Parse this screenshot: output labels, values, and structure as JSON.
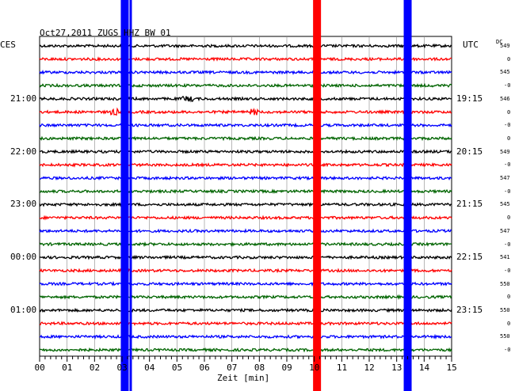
{
  "header": {
    "title": "Oct27,2011   ZUGS HHZ BW 01",
    "left_tz": "CES",
    "right_tz": "UTC",
    "dc_label": "DC"
  },
  "chart_data": {
    "type": "line",
    "title": "Oct27,2011   ZUGS HHZ BW 01",
    "xlabel": "Zeit [min]",
    "xlim": [
      0,
      15
    ],
    "x_ticks": [
      "00",
      "01",
      "02",
      "03",
      "04",
      "05",
      "06",
      "07",
      "08",
      "09",
      "10",
      "11",
      "12",
      "13",
      "14",
      "15"
    ],
    "trace_count": 24,
    "trace_colors": [
      "#000000",
      "#ff0000",
      "#0000ff",
      "#006400"
    ],
    "left_time_labels": [
      {
        "trace": 4,
        "text": "21:00"
      },
      {
        "trace": 8,
        "text": "22:00"
      },
      {
        "trace": 12,
        "text": "23:00"
      },
      {
        "trace": 16,
        "text": "00:00"
      },
      {
        "trace": 20,
        "text": "01:00"
      }
    ],
    "right_time_labels": [
      {
        "trace": 4,
        "text": "19:15"
      },
      {
        "trace": 8,
        "text": "20:15"
      },
      {
        "trace": 12,
        "text": "21:15"
      },
      {
        "trace": 16,
        "text": "22:15"
      },
      {
        "trace": 20,
        "text": "23:15"
      }
    ],
    "dc_values": [
      "549",
      "0",
      "545",
      "-0",
      "546",
      "0",
      "-0",
      "0",
      "549",
      "-0",
      "547",
      "-0",
      "545",
      "0",
      "547",
      "-0",
      "541",
      "-0",
      "550",
      "0",
      "550",
      "0",
      "550",
      "-0"
    ],
    "events": [
      {
        "minute": 3.1,
        "color": "#0000ff"
      },
      {
        "minute": 10.1,
        "color": "#ff0000"
      },
      {
        "minute": 13.4,
        "color": "#0000ff"
      }
    ],
    "grid": true
  }
}
